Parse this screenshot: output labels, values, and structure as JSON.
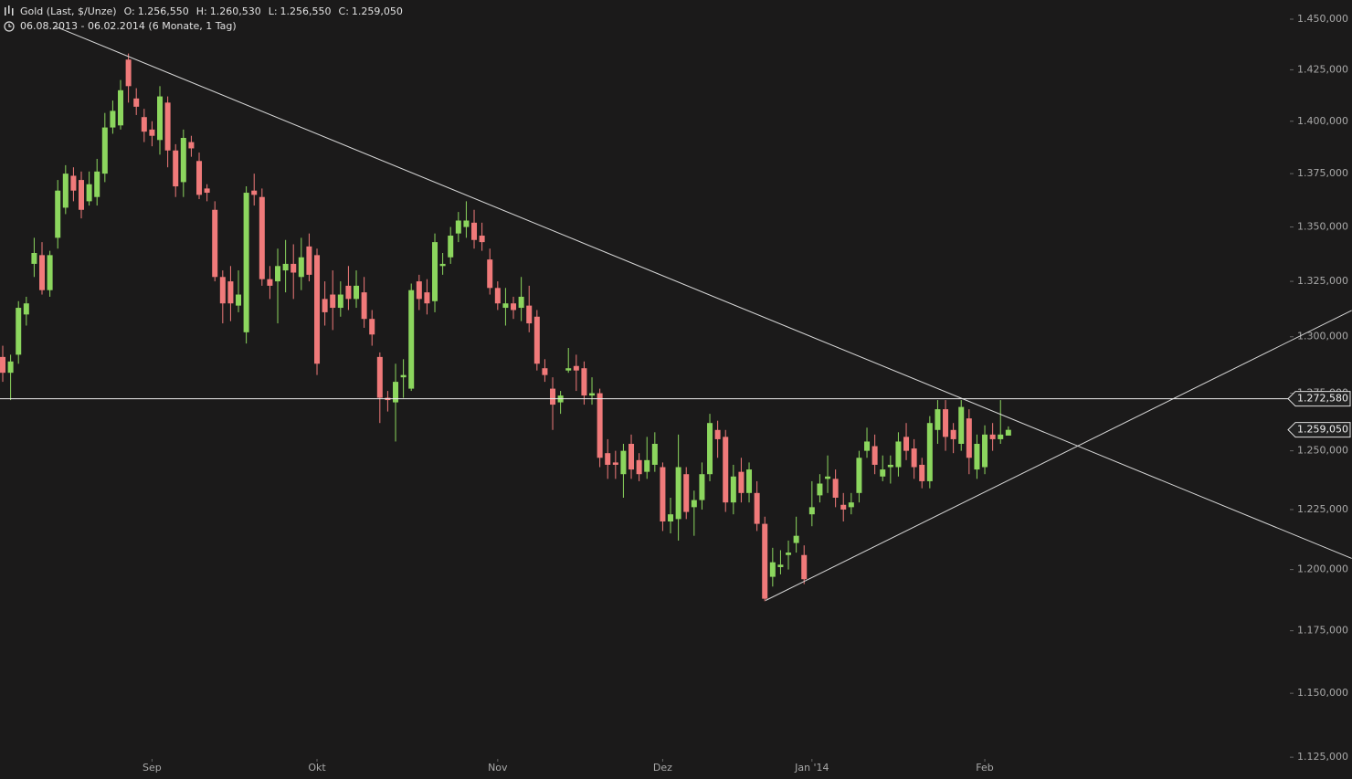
{
  "chart_data": {
    "type": "candlestick",
    "title": "Gold (Last, $/Unze)",
    "ohlc": [
      {
        "name": "O:",
        "value": 1256.55,
        "label": "1.256,550"
      },
      {
        "name": "H:",
        "value": 1260.53,
        "label": "1.260,530"
      },
      {
        "name": "L:",
        "value": 1256.55,
        "label": "1.256,550"
      },
      {
        "name": "C:",
        "value": 1259.05,
        "label": "1.259,050"
      }
    ],
    "subtitle": "06.08.2013 - 06.02.2014 (6 Monate, 1 Tag)",
    "log_scale": true,
    "up_color": "#8cd65e",
    "down_color": "#f07a7a",
    "open": [
      1291,
      1284,
      1292,
      1310,
      1333,
      1337,
      1321,
      1345,
      1359,
      1374,
      1372,
      1362,
      1364,
      1375,
      1397,
      1398,
      1430,
      1411,
      1402,
      1396,
      1391,
      1409,
      1386,
      1371,
      1390,
      1381,
      1368,
      1358,
      1327,
      1325,
      1314,
      1302,
      1367,
      1364,
      1326,
      1325,
      1330,
      1333,
      1327,
      1341,
      1337,
      1317,
      1319,
      1313,
      1323,
      1317,
      1320,
      1308,
      1291,
      1273,
      1271,
      1282,
      1277,
      1325,
      1320,
      1316,
      1332,
      1336,
      1347,
      1350,
      1352,
      1346,
      1335,
      1322,
      1313,
      1315,
      1313,
      1314,
      1309,
      1286,
      1277,
      1271,
      1285,
      1287,
      1286,
      1274,
      1275,
      1249,
      1245,
      1240,
      1253,
      1246,
      1241,
      1244,
      1243,
      1220,
      1221,
      1240,
      1226,
      1229,
      1240,
      1259,
      1256,
      1228,
      1241,
      1232,
      1232,
      1219,
      1197,
      1201,
      1206,
      1211,
      1206,
      1223,
      1231,
      1238,
      1238,
      1227,
      1226,
      1232,
      1250,
      1252,
      1239,
      1243,
      1243,
      1256,
      1251,
      1244,
      1237,
      1259,
      1268,
      1259,
      1253,
      1264,
      1242,
      1243,
      1257,
      1255,
      1256.55
    ],
    "high": [
      1296,
      1292,
      1316,
      1318,
      1345,
      1343,
      1339,
      1372,
      1379,
      1378,
      1376,
      1376,
      1382,
      1404,
      1410,
      1420,
      1433,
      1416,
      1406,
      1400,
      1417,
      1412,
      1389,
      1396,
      1393,
      1385,
      1370,
      1362,
      1330,
      1332,
      1330,
      1369,
      1375,
      1368,
      1332,
      1340,
      1344,
      1342,
      1345,
      1347,
      1340,
      1325,
      1330,
      1325,
      1332,
      1330,
      1327,
      1312,
      1293,
      1276,
      1288,
      1290,
      1324,
      1328,
      1326,
      1347,
      1338,
      1350,
      1357,
      1362,
      1358,
      1352,
      1340,
      1325,
      1322,
      1318,
      1327,
      1323,
      1312,
      1290,
      1282,
      1276,
      1295,
      1292,
      1289,
      1282,
      1277,
      1255,
      1250,
      1253,
      1257,
      1249,
      1256,
      1258,
      1245,
      1230,
      1257,
      1243,
      1233,
      1245,
      1266,
      1263,
      1259,
      1244,
      1247,
      1245,
      1237,
      1222,
      1209,
      1208,
      1212,
      1222,
      1210,
      1237,
      1240,
      1248,
      1242,
      1232,
      1232,
      1250,
      1260,
      1257,
      1248,
      1248,
      1258,
      1262,
      1255,
      1247,
      1265,
      1272,
      1272,
      1262,
      1272,
      1268,
      1257,
      1261,
      1262,
      1272,
      1260.53
    ],
    "low": [
      1280,
      1272,
      1288,
      1305,
      1327,
      1319,
      1318,
      1340,
      1356,
      1362,
      1354,
      1360,
      1360,
      1371,
      1394,
      1396,
      1409,
      1403,
      1390,
      1388,
      1384,
      1378,
      1364,
      1364,
      1383,
      1363,
      1362,
      1325,
      1306,
      1307,
      1311,
      1297,
      1360,
      1323,
      1317,
      1306,
      1320,
      1317,
      1321,
      1325,
      1283,
      1305,
      1303,
      1309,
      1312,
      1313,
      1304,
      1296,
      1262,
      1267,
      1254,
      1273,
      1276,
      1312,
      1310,
      1311,
      1328,
      1333,
      1343,
      1345,
      1340,
      1339,
      1319,
      1312,
      1305,
      1308,
      1307,
      1302,
      1285,
      1280,
      1259,
      1266,
      1284,
      1276,
      1270,
      1270,
      1243,
      1238,
      1238,
      1230,
      1238,
      1237,
      1238,
      1241,
      1216,
      1215,
      1212,
      1221,
      1214,
      1225,
      1237,
      1247,
      1224,
      1223,
      1228,
      1228,
      1216,
      1187,
      1193,
      1198,
      1200,
      1207,
      1194,
      1218,
      1228,
      1232,
      1226,
      1220,
      1223,
      1228,
      1247,
      1240,
      1237,
      1236,
      1239,
      1246,
      1238,
      1234,
      1234,
      1253,
      1250,
      1249,
      1250,
      1240,
      1238,
      1240,
      1250,
      1253,
      1256.55
    ],
    "close": [
      1284,
      1289,
      1313,
      1315,
      1338,
      1321,
      1337,
      1367,
      1375,
      1367,
      1358,
      1370,
      1376,
      1397,
      1405,
      1415,
      1417,
      1407,
      1395,
      1393,
      1412,
      1386,
      1369,
      1392,
      1387,
      1365,
      1366,
      1327,
      1315,
      1315,
      1319,
      1366,
      1365,
      1326,
      1323,
      1332,
      1333,
      1329,
      1336,
      1328,
      1288,
      1311,
      1313,
      1319,
      1317,
      1323,
      1308,
      1301,
      1273,
      1272,
      1280,
      1283,
      1321,
      1317,
      1315,
      1343,
      1333,
      1346,
      1353,
      1353,
      1344,
      1343,
      1322,
      1315,
      1315,
      1312,
      1318,
      1306,
      1288,
      1283,
      1270,
      1274,
      1286,
      1285,
      1274,
      1275,
      1247,
      1244,
      1244,
      1250,
      1242,
      1240,
      1246,
      1253,
      1220,
      1223,
      1243,
      1224,
      1229,
      1240,
      1262,
      1255,
      1228,
      1239,
      1232,
      1242,
      1219,
      1188,
      1203,
      1202,
      1207,
      1214,
      1196,
      1226,
      1236,
      1239,
      1230,
      1225,
      1228,
      1247,
      1254,
      1244,
      1242,
      1244,
      1254,
      1250,
      1243,
      1237,
      1262,
      1268,
      1256,
      1255,
      1269,
      1247,
      1253,
      1257,
      1255,
      1257,
      1259.05
    ],
    "xlim": [
      -0.35,
      163.6
    ],
    "xticks": [
      {
        "value": 19,
        "label": "Sep"
      },
      {
        "value": 40,
        "label": "Okt"
      },
      {
        "value": 63,
        "label": "Nov"
      },
      {
        "value": 84,
        "label": "Dez"
      },
      {
        "value": 103,
        "label": "Jan '14"
      },
      {
        "value": 125,
        "label": "Feb"
      }
    ],
    "ylim": [
      1116.6,
      1459.6
    ],
    "yticks": [
      {
        "value": 1125,
        "label": "1.125,000"
      },
      {
        "value": 1150,
        "label": "1.150,000"
      },
      {
        "value": 1175,
        "label": "1.175,000"
      },
      {
        "value": 1200,
        "label": "1.200,000"
      },
      {
        "value": 1225,
        "label": "1.225,000"
      },
      {
        "value": 1250,
        "label": "1.250,000"
      },
      {
        "value": 1275,
        "label": "1.275,000"
      },
      {
        "value": 1300,
        "label": "1.300,000"
      },
      {
        "value": 1325,
        "label": "1.325,000"
      },
      {
        "value": 1350,
        "label": "1.350,000"
      },
      {
        "value": 1375,
        "label": "1.375,000"
      },
      {
        "value": 1400,
        "label": "1.400,000"
      },
      {
        "value": 1425,
        "label": "1.425,000"
      },
      {
        "value": 1450,
        "label": "1.450,000"
      }
    ],
    "hline": {
      "value": 1272.58,
      "label": "1.272,580"
    },
    "last_price": {
      "value": 1259.05,
      "label": "1.259,050"
    },
    "trendlines": [
      {
        "x": [
          6.6,
          171.7
        ],
        "y": [
          1446.5,
          1204.6
        ]
      },
      {
        "x": [
          97.1,
          171.7
        ],
        "y": [
          1187.3,
          1311.8
        ]
      }
    ]
  }
}
